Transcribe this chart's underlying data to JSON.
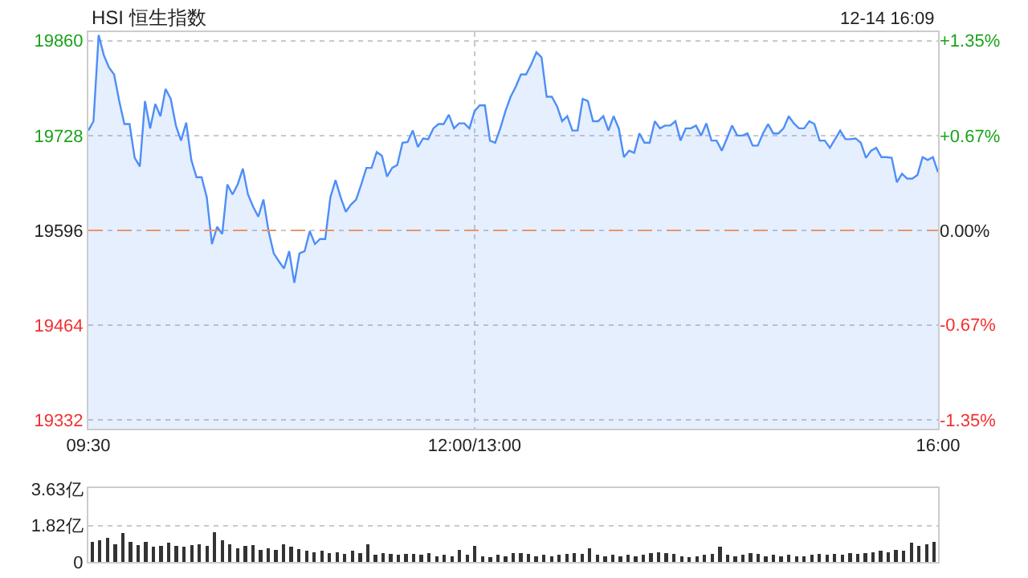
{
  "chart_data": [
    {
      "type": "area",
      "title": "HSI 恒生指数",
      "annotations": [
        "12-14 16:09"
      ],
      "categories": [
        "09:30",
        null,
        null,
        null,
        null,
        null,
        null,
        null,
        null,
        null,
        null,
        null,
        null,
        null,
        null,
        null,
        null,
        null,
        null,
        null,
        null,
        null,
        null,
        null,
        null,
        null,
        null,
        null,
        null,
        null,
        null,
        null,
        null,
        null,
        null,
        null,
        null,
        null,
        null,
        null,
        null,
        null,
        null,
        null,
        null,
        null,
        null,
        null,
        null,
        null,
        null,
        null,
        null,
        null,
        null,
        null,
        null,
        null,
        null,
        null,
        null,
        null,
        null,
        null,
        null,
        null,
        null,
        null,
        null,
        null,
        null,
        null,
        null,
        null,
        null,
        "12:00/13:00",
        null,
        null,
        null,
        null,
        null,
        null,
        null,
        null,
        null,
        null,
        null,
        null,
        null,
        null,
        null,
        null,
        null,
        null,
        null,
        null,
        null,
        null,
        null,
        null,
        null,
        null,
        null,
        null,
        null,
        null,
        null,
        null,
        null,
        null,
        null,
        null,
        null,
        null,
        null,
        null,
        null,
        null,
        null,
        null,
        null,
        null,
        null,
        null,
        null,
        null,
        null,
        null,
        null,
        null,
        null,
        null,
        null,
        null,
        null,
        null,
        null,
        null,
        null,
        null,
        null,
        null,
        null,
        null,
        null,
        null,
        null,
        null,
        null,
        null,
        null,
        null,
        null,
        null,
        null,
        null,
        null,
        null,
        null,
        null,
        null,
        null,
        null,
        null,
        null,
        "16:00"
      ],
      "series": [
        {
          "color": "#4e8ef7",
          "values": [
            19735,
            19748,
            19868,
            19840,
            19823,
            19813,
            19776,
            19744,
            19744,
            19697,
            19685,
            19776,
            19738,
            19772,
            19755,
            19793,
            19779,
            19742,
            19721,
            19746,
            19694,
            19670,
            19670,
            19642,
            19577,
            19601,
            19591,
            19660,
            19646,
            19660,
            19682,
            19646,
            19629,
            19615,
            19639,
            19595,
            19564,
            19553,
            19543,
            19567,
            19523,
            19564,
            19567,
            19595,
            19577,
            19584,
            19584,
            19642,
            19666,
            19642,
            19622,
            19632,
            19639,
            19660,
            19683,
            19683,
            19705,
            19700,
            19671,
            19683,
            19687,
            19718,
            19719,
            19735,
            19712,
            19724,
            19723,
            19738,
            19744,
            19744,
            19757,
            19738,
            19745,
            19745,
            19738,
            19762,
            19770,
            19770,
            19721,
            19718,
            19738,
            19762,
            19782,
            19796,
            19813,
            19813,
            19827,
            19844,
            19837,
            19782,
            19782,
            19769,
            19748,
            19755,
            19735,
            19735,
            19779,
            19776,
            19748,
            19748,
            19755,
            19735,
            19755,
            19738,
            19698,
            19707,
            19704,
            19731,
            19718,
            19718,
            19748,
            19738,
            19742,
            19742,
            19748,
            19721,
            19738,
            19738,
            19742,
            19728,
            19745,
            19721,
            19721,
            19707,
            19724,
            19742,
            19728,
            19728,
            19731,
            19714,
            19714,
            19731,
            19744,
            19731,
            19731,
            19738,
            19755,
            19745,
            19738,
            19738,
            19748,
            19744,
            19721,
            19721,
            19711,
            19723,
            19735,
            19723,
            19723,
            19724,
            19718,
            19697,
            19707,
            19711,
            19698,
            19698,
            19697,
            19663,
            19675,
            19668,
            19668,
            19673,
            19698,
            19694,
            19698,
            19677
          ]
        }
      ],
      "ylim": [
        19320,
        19872
      ],
      "yticks": [
        19332,
        19464,
        19596,
        19728,
        19860
      ],
      "y2lim": [
        -1.41,
        1.41
      ],
      "y2ticks": [
        {
          "value": -1.35,
          "label": "-1.35%"
        },
        {
          "value": -0.67,
          "label": "-0.67%"
        },
        {
          "value": 0,
          "label": "0.00%"
        },
        {
          "value": 0.67,
          "label": "+0.67%"
        },
        {
          "value": 1.35,
          "label": "+1.35%"
        }
      ],
      "ref_lines": [
        {
          "axis": "y",
          "value": 19596,
          "color": "#e8956b",
          "line_style": "dashed"
        }
      ],
      "grid": true
    },
    {
      "type": "bar",
      "color": "#333333",
      "categories": [
        null,
        null,
        null,
        null,
        null,
        null,
        null,
        null,
        null,
        null,
        null,
        null,
        null,
        null,
        null,
        null,
        null,
        null,
        null,
        null,
        null,
        null,
        null,
        null,
        null,
        null,
        null,
        null,
        null,
        null,
        null,
        null,
        null,
        null,
        null,
        null,
        null,
        null,
        null,
        null,
        null,
        null,
        null,
        null,
        null,
        null,
        null,
        null,
        null,
        null,
        null,
        null,
        null,
        null,
        null,
        null,
        null,
        null,
        null,
        null,
        null,
        null,
        null,
        null,
        null,
        null,
        null,
        null,
        null,
        null,
        null,
        null,
        null,
        null,
        null,
        null,
        null,
        null,
        null,
        null,
        null,
        null,
        null,
        null,
        null,
        null,
        null,
        null,
        null,
        null,
        null,
        null,
        null,
        null,
        null,
        null,
        null,
        null,
        null,
        null,
        null,
        null,
        null,
        null,
        null,
        null,
        null,
        null,
        null,
        null,
        null
      ],
      "values": [
        1.0,
        1.1,
        1.2,
        0.9,
        1.45,
        1.0,
        0.85,
        1.0,
        0.75,
        0.8,
        0.95,
        0.8,
        0.75,
        0.85,
        0.9,
        0.8,
        1.5,
        1.1,
        0.9,
        0.7,
        0.8,
        0.85,
        0.6,
        0.7,
        0.6,
        0.9,
        0.75,
        0.65,
        0.55,
        0.5,
        0.55,
        0.45,
        0.5,
        0.4,
        0.55,
        0.45,
        0.9,
        0.35,
        0.45,
        0.4,
        0.35,
        0.4,
        0.4,
        0.35,
        0.45,
        0.3,
        0.35,
        0.3,
        0.6,
        0.35,
        0.8,
        0.3,
        0.25,
        0.35,
        0.3,
        0.45,
        0.45,
        0.4,
        0.3,
        0.35,
        0.3,
        0.35,
        0.4,
        0.45,
        0.4,
        0.7,
        0.35,
        0.3,
        0.35,
        0.3,
        0.35,
        0.3,
        0.35,
        0.45,
        0.5,
        0.45,
        0.4,
        0.3,
        0.25,
        0.3,
        0.35,
        0.4,
        0.75,
        0.35,
        0.3,
        0.35,
        0.45,
        0.4,
        0.3,
        0.35,
        0.3,
        0.35,
        0.3,
        0.3,
        0.35,
        0.4,
        0.35,
        0.4,
        0.35,
        0.45,
        0.4,
        0.45,
        0.5,
        0.55,
        0.5,
        0.6,
        0.55,
        0.95,
        0.8,
        0.9,
        1.0
      ],
      "ylim": [
        0,
        3.7
      ],
      "yticks": [
        0,
        {
          "value": 1.82,
          "label": "1.82亿"
        },
        {
          "value": 3.63,
          "label": "3.63亿"
        }
      ],
      "grid": "y",
      "tick_labels": "y"
    }
  ]
}
